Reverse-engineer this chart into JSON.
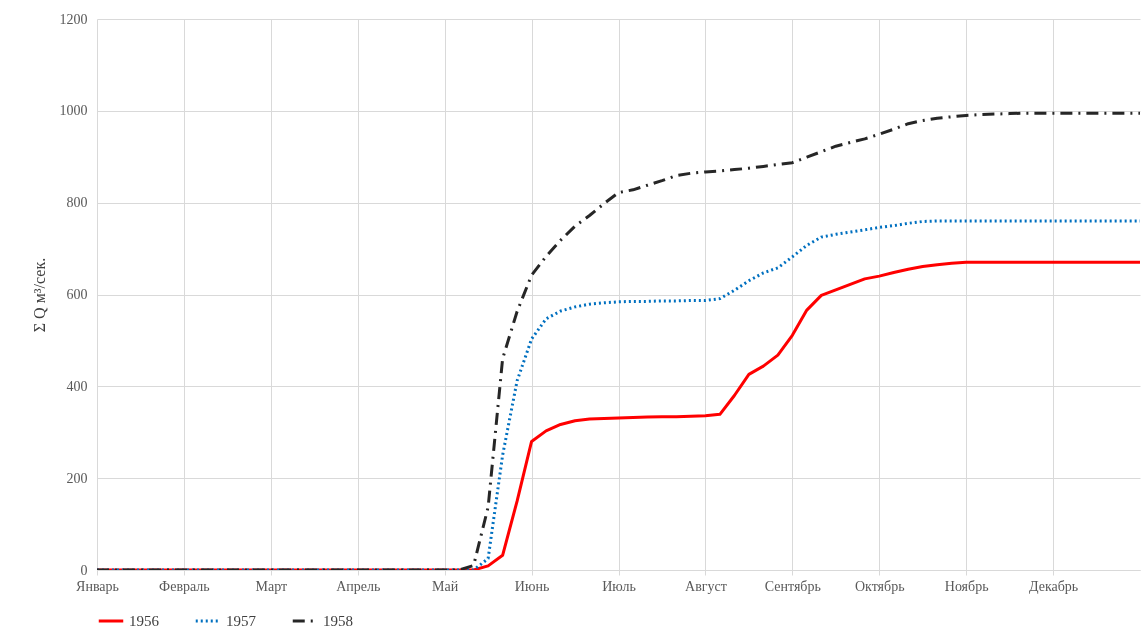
{
  "chart_data": {
    "type": "line",
    "ylabel": "Σ Q м³/сек.",
    "categories": [
      "Январь",
      null,
      null,
      null,
      null,
      null,
      "Февраль",
      null,
      null,
      null,
      null,
      null,
      "Март",
      null,
      null,
      null,
      null,
      null,
      "Апрель",
      null,
      null,
      null,
      null,
      null,
      "Май",
      null,
      null,
      null,
      null,
      null,
      "Июнь",
      null,
      null,
      null,
      null,
      null,
      "Июль",
      null,
      null,
      null,
      null,
      null,
      "Август",
      null,
      null,
      null,
      null,
      null,
      "Сентябрь",
      null,
      null,
      null,
      null,
      null,
      "Октябрь",
      null,
      null,
      null,
      null,
      null,
      "Ноябрь",
      null,
      null,
      null,
      null,
      null,
      "Декабрь",
      null,
      null,
      null,
      null,
      null,
      null
    ],
    "ylim": [
      0,
      1200
    ],
    "yticks": [
      0,
      200,
      400,
      600,
      800,
      1000,
      1200
    ],
    "grid": true,
    "legend": "bottom",
    "marker": "none",
    "series": [
      {
        "name": "1956",
        "color": "#ff0000",
        "line_style": "solid",
        "values": [
          0,
          0,
          0,
          0,
          0,
          0,
          0,
          0,
          0,
          0,
          0,
          0,
          0,
          0,
          0,
          0,
          0,
          0,
          0,
          0,
          0,
          0,
          0,
          0,
          0,
          0,
          0,
          9,
          32,
          150,
          280,
          303,
          317,
          325,
          329,
          330,
          331,
          332,
          333,
          334,
          334,
          335,
          336,
          339,
          380,
          426,
          444,
          468,
          511,
          566,
          598,
          610,
          622,
          634,
          640,
          648,
          655,
          661,
          665,
          668,
          670,
          670,
          670,
          670,
          670,
          670,
          670,
          670,
          670,
          670,
          670,
          670,
          670
        ]
      },
      {
        "name": "1957",
        "color": "#0070c0",
        "line_style": "dotted",
        "values": [
          0,
          0,
          0,
          0,
          0,
          0,
          0,
          0,
          0,
          0,
          0,
          0,
          0,
          0,
          0,
          0,
          0,
          0,
          0,
          0,
          0,
          0,
          0,
          0,
          0,
          0,
          0,
          25,
          250,
          412,
          503,
          547,
          564,
          573,
          579,
          582,
          584,
          585,
          585,
          586,
          586,
          587,
          587,
          591,
          609,
          630,
          647,
          658,
          682,
          707,
          725,
          731,
          736,
          741,
          746,
          750,
          755,
          759,
          760,
          760,
          760,
          760,
          760,
          760,
          760,
          760,
          760,
          760,
          760,
          760,
          760,
          760,
          760
        ]
      },
      {
        "name": "1958",
        "color": "#262626",
        "line_style": "dashed",
        "values": [
          0,
          0,
          0,
          0,
          0,
          0,
          0,
          0,
          0,
          0,
          0,
          0,
          0,
          0,
          0,
          0,
          0,
          0,
          0,
          0,
          0,
          0,
          0,
          0,
          0,
          0,
          10,
          137,
          460,
          563,
          642,
          683,
          718,
          749,
          772,
          798,
          822,
          828,
          838,
          848,
          859,
          864,
          867,
          869,
          872,
          875,
          879,
          883,
          887,
          899,
          911,
          923,
          931,
          939,
          949,
          960,
          972,
          979,
          984,
          987,
          990,
          992,
          993,
          994,
          995,
          995,
          995,
          995,
          995,
          995,
          995,
          995,
          995
        ]
      }
    ]
  }
}
